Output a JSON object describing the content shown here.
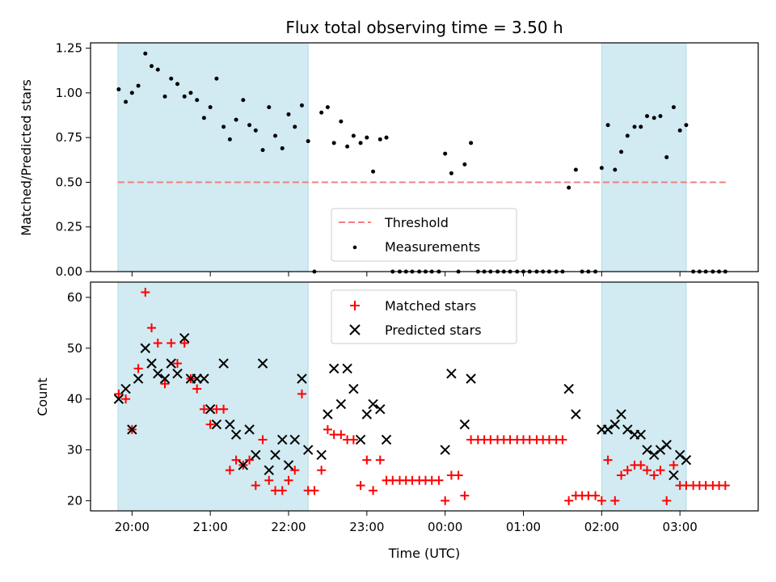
{
  "chart_data": [
    {
      "type": "scatter",
      "panel": "top",
      "title": "Flux total observing time = 3.50 h",
      "xlabel": "",
      "ylabel": "Matched/Predicted stars",
      "ylim": [
        0,
        1.28
      ],
      "yticks": [
        "0.00",
        "0.25",
        "0.50",
        "0.75",
        "1.00",
        "1.25"
      ],
      "shaded_intervals_hours": [
        [
          19.82,
          22.25
        ],
        [
          26.0,
          27.08
        ]
      ],
      "shade_color": "#add8e6",
      "threshold": {
        "name": "Threshold",
        "y": 0.5,
        "x_start": 19.82,
        "x_end": 27.6,
        "color": "#f08080",
        "style": "dashed"
      },
      "legend": {
        "placement": "lower-center",
        "entries": [
          "Threshold",
          "Measurements"
        ]
      },
      "series": [
        {
          "name": "Measurements",
          "color": "#000000",
          "points": [
            [
              19.83,
              1.02
            ],
            [
              19.92,
              0.95
            ],
            [
              20.0,
              1.0
            ],
            [
              20.08,
              1.04
            ],
            [
              20.17,
              1.22
            ],
            [
              20.25,
              1.15
            ],
            [
              20.33,
              1.13
            ],
            [
              20.42,
              0.98
            ],
            [
              20.5,
              1.08
            ],
            [
              20.58,
              1.05
            ],
            [
              20.67,
              0.98
            ],
            [
              20.75,
              1.0
            ],
            [
              20.83,
              0.96
            ],
            [
              20.92,
              0.86
            ],
            [
              21.0,
              0.92
            ],
            [
              21.08,
              1.08
            ],
            [
              21.17,
              0.81
            ],
            [
              21.25,
              0.74
            ],
            [
              21.33,
              0.85
            ],
            [
              21.42,
              0.96
            ],
            [
              21.5,
              0.82
            ],
            [
              21.58,
              0.79
            ],
            [
              21.67,
              0.68
            ],
            [
              21.75,
              0.92
            ],
            [
              21.83,
              0.76
            ],
            [
              21.92,
              0.69
            ],
            [
              22.0,
              0.88
            ],
            [
              22.08,
              0.81
            ],
            [
              22.17,
              0.93
            ],
            [
              22.25,
              0.73
            ],
            [
              22.33,
              0.0
            ],
            [
              22.42,
              0.89
            ],
            [
              22.5,
              0.92
            ],
            [
              22.58,
              0.72
            ],
            [
              22.67,
              0.84
            ],
            [
              22.75,
              0.7
            ],
            [
              22.83,
              0.76
            ],
            [
              22.92,
              0.72
            ],
            [
              23.0,
              0.75
            ],
            [
              23.08,
              0.56
            ],
            [
              23.17,
              0.74
            ],
            [
              23.25,
              0.75
            ],
            [
              23.33,
              0.0
            ],
            [
              23.42,
              0.0
            ],
            [
              23.5,
              0.0
            ],
            [
              23.58,
              0.0
            ],
            [
              23.67,
              0.0
            ],
            [
              23.75,
              0.0
            ],
            [
              23.83,
              0.0
            ],
            [
              23.92,
              0.0
            ],
            [
              24.0,
              0.66
            ],
            [
              24.08,
              0.55
            ],
            [
              24.17,
              0.0
            ],
            [
              24.25,
              0.6
            ],
            [
              24.33,
              0.72
            ],
            [
              24.42,
              0.0
            ],
            [
              24.5,
              0.0
            ],
            [
              24.58,
              0.0
            ],
            [
              24.67,
              0.0
            ],
            [
              24.75,
              0.0
            ],
            [
              24.83,
              0.0
            ],
            [
              24.92,
              0.0
            ],
            [
              25.0,
              0.0
            ],
            [
              25.08,
              0.0
            ],
            [
              25.17,
              0.0
            ],
            [
              25.25,
              0.0
            ],
            [
              25.33,
              0.0
            ],
            [
              25.42,
              0.0
            ],
            [
              25.5,
              0.0
            ],
            [
              25.58,
              0.47
            ],
            [
              25.67,
              0.57
            ],
            [
              25.75,
              0.0
            ],
            [
              25.83,
              0.0
            ],
            [
              25.92,
              0.0
            ],
            [
              26.0,
              0.58
            ],
            [
              26.08,
              0.82
            ],
            [
              26.17,
              0.57
            ],
            [
              26.25,
              0.67
            ],
            [
              26.33,
              0.76
            ],
            [
              26.42,
              0.81
            ],
            [
              26.5,
              0.81
            ],
            [
              26.58,
              0.87
            ],
            [
              26.67,
              0.86
            ],
            [
              26.75,
              0.87
            ],
            [
              26.83,
              0.64
            ],
            [
              26.92,
              0.92
            ],
            [
              27.0,
              0.79
            ],
            [
              27.08,
              0.82
            ],
            [
              27.17,
              0.0
            ],
            [
              27.25,
              0.0
            ],
            [
              27.33,
              0.0
            ],
            [
              27.42,
              0.0
            ],
            [
              27.5,
              0.0
            ],
            [
              27.58,
              0.0
            ]
          ]
        }
      ]
    },
    {
      "type": "scatter",
      "panel": "bottom",
      "title": "",
      "xlabel": "Time (UTC)",
      "ylabel": "Count",
      "ylim": [
        18,
        63
      ],
      "yticks": [
        "20",
        "30",
        "40",
        "50",
        "60"
      ],
      "xticks": [
        "20:00",
        "21:00",
        "22:00",
        "23:00",
        "00:00",
        "01:00",
        "02:00",
        "03:00"
      ],
      "xtick_hours": [
        20,
        21,
        22,
        23,
        24,
        25,
        26,
        27
      ],
      "xlim_hours": [
        19.47,
        28.0
      ],
      "shaded_intervals_hours": [
        [
          19.82,
          22.25
        ],
        [
          26.0,
          27.08
        ]
      ],
      "shade_color": "#add8e6",
      "legend": {
        "placement": "upper-center",
        "entries": [
          "Matched stars",
          "Predicted stars"
        ]
      },
      "series": [
        {
          "name": "Matched stars",
          "color": "#ff0000",
          "marker": "plus",
          "points": [
            [
              19.83,
              41
            ],
            [
              19.92,
              40
            ],
            [
              20.0,
              34
            ],
            [
              20.08,
              46
            ],
            [
              20.17,
              61
            ],
            [
              20.25,
              54
            ],
            [
              20.33,
              51
            ],
            [
              20.42,
              43
            ],
            [
              20.5,
              51
            ],
            [
              20.58,
              47
            ],
            [
              20.67,
              51
            ],
            [
              20.75,
              44
            ],
            [
              20.83,
              42
            ],
            [
              20.92,
              38
            ],
            [
              21.0,
              35
            ],
            [
              21.08,
              38
            ],
            [
              21.17,
              38
            ],
            [
              21.25,
              26
            ],
            [
              21.33,
              28
            ],
            [
              21.42,
              27
            ],
            [
              21.5,
              28
            ],
            [
              21.58,
              23
            ],
            [
              21.67,
              32
            ],
            [
              21.75,
              24
            ],
            [
              21.83,
              22
            ],
            [
              21.92,
              22
            ],
            [
              22.0,
              24
            ],
            [
              22.08,
              26
            ],
            [
              22.17,
              41
            ],
            [
              22.25,
              22
            ],
            [
              22.33,
              22
            ],
            [
              22.42,
              26
            ],
            [
              22.5,
              34
            ],
            [
              22.58,
              33
            ],
            [
              22.67,
              33
            ],
            [
              22.75,
              32
            ],
            [
              22.83,
              32
            ],
            [
              22.92,
              23
            ],
            [
              23.0,
              28
            ],
            [
              23.08,
              22
            ],
            [
              23.17,
              28
            ],
            [
              23.25,
              24
            ],
            [
              23.33,
              24
            ],
            [
              23.42,
              24
            ],
            [
              23.5,
              24
            ],
            [
              23.58,
              24
            ],
            [
              23.67,
              24
            ],
            [
              23.75,
              24
            ],
            [
              23.83,
              24
            ],
            [
              23.92,
              24
            ],
            [
              24.0,
              20
            ],
            [
              24.08,
              25
            ],
            [
              24.17,
              25
            ],
            [
              24.25,
              21
            ],
            [
              24.33,
              32
            ],
            [
              24.42,
              32
            ],
            [
              24.5,
              32
            ],
            [
              24.58,
              32
            ],
            [
              24.67,
              32
            ],
            [
              24.75,
              32
            ],
            [
              24.83,
              32
            ],
            [
              24.92,
              32
            ],
            [
              25.0,
              32
            ],
            [
              25.08,
              32
            ],
            [
              25.17,
              32
            ],
            [
              25.25,
              32
            ],
            [
              25.33,
              32
            ],
            [
              25.42,
              32
            ],
            [
              25.5,
              32
            ],
            [
              25.58,
              20
            ],
            [
              25.67,
              21
            ],
            [
              25.75,
              21
            ],
            [
              25.83,
              21
            ],
            [
              25.92,
              21
            ],
            [
              26.0,
              20
            ],
            [
              26.08,
              28
            ],
            [
              26.17,
              20
            ],
            [
              26.25,
              25
            ],
            [
              26.33,
              26
            ],
            [
              26.42,
              27
            ],
            [
              26.5,
              27
            ],
            [
              26.58,
              26
            ],
            [
              26.67,
              25
            ],
            [
              26.75,
              26
            ],
            [
              26.83,
              20
            ],
            [
              26.92,
              27
            ],
            [
              27.0,
              23
            ],
            [
              27.08,
              23
            ],
            [
              27.17,
              23
            ],
            [
              27.25,
              23
            ],
            [
              27.33,
              23
            ],
            [
              27.42,
              23
            ],
            [
              27.5,
              23
            ],
            [
              27.58,
              23
            ]
          ]
        },
        {
          "name": "Predicted stars",
          "color": "#000000",
          "marker": "x",
          "points": [
            [
              19.83,
              40
            ],
            [
              19.92,
              42
            ],
            [
              20.0,
              34
            ],
            [
              20.08,
              44
            ],
            [
              20.17,
              50
            ],
            [
              20.25,
              47
            ],
            [
              20.33,
              45
            ],
            [
              20.42,
              44
            ],
            [
              20.5,
              47
            ],
            [
              20.58,
              45
            ],
            [
              20.67,
              52
            ],
            [
              20.75,
              44
            ],
            [
              20.83,
              44
            ],
            [
              20.92,
              44
            ],
            [
              21.0,
              38
            ],
            [
              21.08,
              35
            ],
            [
              21.17,
              47
            ],
            [
              21.25,
              35
            ],
            [
              21.33,
              33
            ],
            [
              21.42,
              27
            ],
            [
              21.5,
              34
            ],
            [
              21.58,
              29
            ],
            [
              21.67,
              47
            ],
            [
              21.75,
              26
            ],
            [
              21.83,
              29
            ],
            [
              21.92,
              32
            ],
            [
              22.0,
              27
            ],
            [
              22.08,
              32
            ],
            [
              22.17,
              44
            ],
            [
              22.25,
              30
            ],
            [
              22.42,
              29
            ],
            [
              22.5,
              37
            ],
            [
              22.58,
              46
            ],
            [
              22.67,
              39
            ],
            [
              22.75,
              46
            ],
            [
              22.83,
              42
            ],
            [
              22.92,
              32
            ],
            [
              23.0,
              37
            ],
            [
              23.08,
              39
            ],
            [
              23.17,
              38
            ],
            [
              23.25,
              32
            ],
            [
              24.0,
              30
            ],
            [
              24.08,
              45
            ],
            [
              24.25,
              35
            ],
            [
              24.33,
              44
            ],
            [
              25.58,
              42
            ],
            [
              25.67,
              37
            ],
            [
              26.0,
              34
            ],
            [
              26.08,
              34
            ],
            [
              26.17,
              35
            ],
            [
              26.25,
              37
            ],
            [
              26.33,
              34
            ],
            [
              26.42,
              33
            ],
            [
              26.5,
              33
            ],
            [
              26.58,
              30
            ],
            [
              26.67,
              29
            ],
            [
              26.75,
              30
            ],
            [
              26.83,
              31
            ],
            [
              26.92,
              25
            ],
            [
              27.0,
              29
            ],
            [
              27.08,
              28
            ]
          ]
        }
      ]
    }
  ]
}
